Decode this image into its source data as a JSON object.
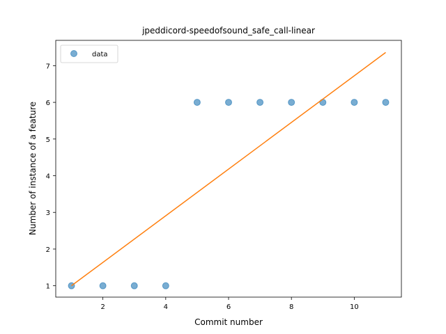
{
  "chart_data": {
    "type": "scatter",
    "title": "jpeddicord-speedofsound_safe_call-linear",
    "xlabel": "Commit number",
    "ylabel": "Number of instance of a feature",
    "xlim": [
      0.5,
      11.5
    ],
    "ylim": [
      0.69,
      7.69
    ],
    "xticks": [
      2,
      4,
      6,
      8,
      10
    ],
    "yticks": [
      1,
      2,
      3,
      4,
      5,
      6,
      7
    ],
    "grid": false,
    "legend_position": "top-left",
    "series": [
      {
        "name": "data",
        "kind": "scatter",
        "color": "#1f77b4",
        "x": [
          1,
          2,
          3,
          4,
          5,
          6,
          7,
          8,
          9,
          10,
          11
        ],
        "y": [
          1,
          1,
          1,
          1,
          6,
          6,
          6,
          6,
          6,
          6,
          6
        ]
      },
      {
        "kind": "line",
        "color": "#ff7f0e",
        "x": [
          1,
          11
        ],
        "y": [
          1.0,
          7.36
        ]
      }
    ]
  }
}
